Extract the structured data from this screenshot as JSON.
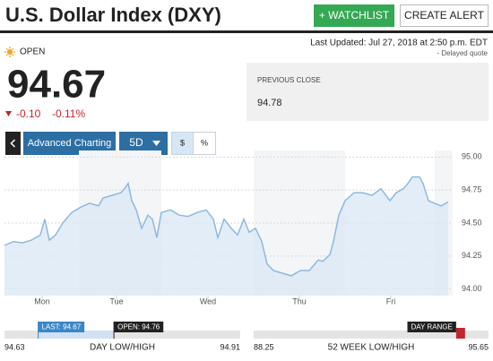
{
  "header": {
    "title": "U.S. Dollar Index (DXY)",
    "buttons": [
      "+ WATCHLIST",
      "CREATE ALERT"
    ]
  },
  "status": {
    "market": "OPEN",
    "last_updated": "Last Updated: Jul 27, 2018 at 2:50 p.m. EDT",
    "delayed": "- Delayed quote"
  },
  "quote": {
    "price": "94.67",
    "change": "-0.10",
    "change_percent": "-0.11%"
  },
  "previous_close": {
    "label": "PREVIOUS CLOSE",
    "value": "94.78"
  },
  "toolbar": {
    "advanced": "Advanced Charting",
    "period": "5D",
    "currency": "$",
    "percent": "%"
  },
  "chart_data": {
    "type": "line",
    "color": "#8fb8de",
    "fill": "#dbe8f5",
    "x": [
      0,
      2,
      4,
      6,
      8,
      9,
      10,
      11.4,
      13,
      15,
      17,
      19,
      21,
      22,
      24,
      26,
      27,
      27.6,
      28.4,
      29.4,
      30.6,
      32,
      33,
      34,
      35,
      37,
      39,
      41,
      43,
      45,
      46.6,
      47.6,
      49,
      50.6,
      52,
      53.4,
      54.6,
      56,
      57.4,
      58.6,
      60,
      62,
      64,
      66,
      68,
      69,
      70,
      71,
      72.6,
      73.4,
      74.6,
      76,
      78,
      80,
      82,
      84,
      86,
      87.4,
      89,
      90,
      91,
      92.6,
      93.4,
      94.6,
      96,
      97.4,
      99
    ],
    "values": [
      94.33,
      94.36,
      94.35,
      94.37,
      94.41,
      94.53,
      94.37,
      94.41,
      94.5,
      94.58,
      94.62,
      94.65,
      94.63,
      94.69,
      94.71,
      94.73,
      94.77,
      94.8,
      94.67,
      94.6,
      94.46,
      94.56,
      94.53,
      94.39,
      94.58,
      94.6,
      94.56,
      94.55,
      94.58,
      94.6,
      94.53,
      94.39,
      94.53,
      94.46,
      94.41,
      94.53,
      94.43,
      94.46,
      94.36,
      94.19,
      94.14,
      94.12,
      94.1,
      94.14,
      94.14,
      94.18,
      94.22,
      94.21,
      94.26,
      94.36,
      94.56,
      94.67,
      94.73,
      94.73,
      94.71,
      94.76,
      94.67,
      94.73,
      94.76,
      94.8,
      94.85,
      94.85,
      94.8,
      94.67,
      94.65,
      94.63,
      94.66
    ],
    "xlim": [
      0,
      100
    ],
    "xticks": [
      {
        "value": 8.4,
        "label": "Mon"
      },
      {
        "value": 25,
        "label": "Tue"
      },
      {
        "value": 45.4,
        "label": "Wed"
      },
      {
        "value": 65.8,
        "label": "Thu"
      },
      {
        "value": 86.2,
        "label": "Fri"
      }
    ],
    "ylim": [
      93.95,
      95.05
    ],
    "yticks": [
      {
        "value": 95,
        "label": "95.00"
      },
      {
        "value": 94.75,
        "label": "94.75"
      },
      {
        "value": 94.5,
        "label": "94.50"
      },
      {
        "value": 94.25,
        "label": "94.25"
      },
      {
        "value": 94,
        "label": "94.00"
      }
    ],
    "grid": true
  },
  "ranges": [
    {
      "title": "DAY LOW/HIGH",
      "low": 94.63,
      "high": 94.91,
      "last": {
        "value": 94.67,
        "label": "LAST: 94.67"
      },
      "open": {
        "value": 94.76,
        "label": "OPEN: 94.76"
      }
    },
    {
      "title": "52 WEEK LOW/HIGH",
      "low": 88.25,
      "high": 95.65,
      "day_range": {
        "label": "DAY RANGE",
        "from": 94.63,
        "to": 94.91
      }
    }
  ]
}
